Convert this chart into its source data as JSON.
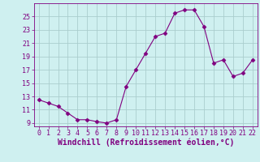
{
  "x_data": [
    0,
    1,
    2,
    3,
    4,
    5,
    6,
    7,
    8,
    9,
    10,
    11,
    12,
    13,
    14,
    15,
    16,
    17,
    18,
    19,
    20,
    21,
    22
  ],
  "y_data": [
    12.5,
    12.0,
    11.5,
    10.5,
    9.5,
    9.5,
    9.2,
    9.0,
    9.5,
    14.5,
    17.0,
    19.5,
    22.0,
    22.5,
    25.5,
    26.0,
    26.0,
    23.5,
    18.0,
    18.5,
    16.0,
    16.5,
    18.5
  ],
  "x_ticks": [
    0,
    1,
    2,
    3,
    4,
    5,
    6,
    7,
    8,
    9,
    10,
    11,
    12,
    13,
    14,
    15,
    16,
    17,
    18,
    19,
    20,
    21,
    22
  ],
  "y_ticks": [
    9,
    11,
    13,
    15,
    17,
    19,
    21,
    23,
    25
  ],
  "ylim": [
    8.5,
    27.0
  ],
  "xlim": [
    -0.5,
    22.5
  ],
  "xlabel": "Windchill (Refroidissement éolien,°C)",
  "line_color": "#800080",
  "marker": "D",
  "marker_size": 2.5,
  "bg_color": "#cff0f0",
  "grid_color": "#aacece",
  "tick_color": "#800080",
  "label_color": "#800080",
  "font_size_tick": 6,
  "font_size_label": 7
}
